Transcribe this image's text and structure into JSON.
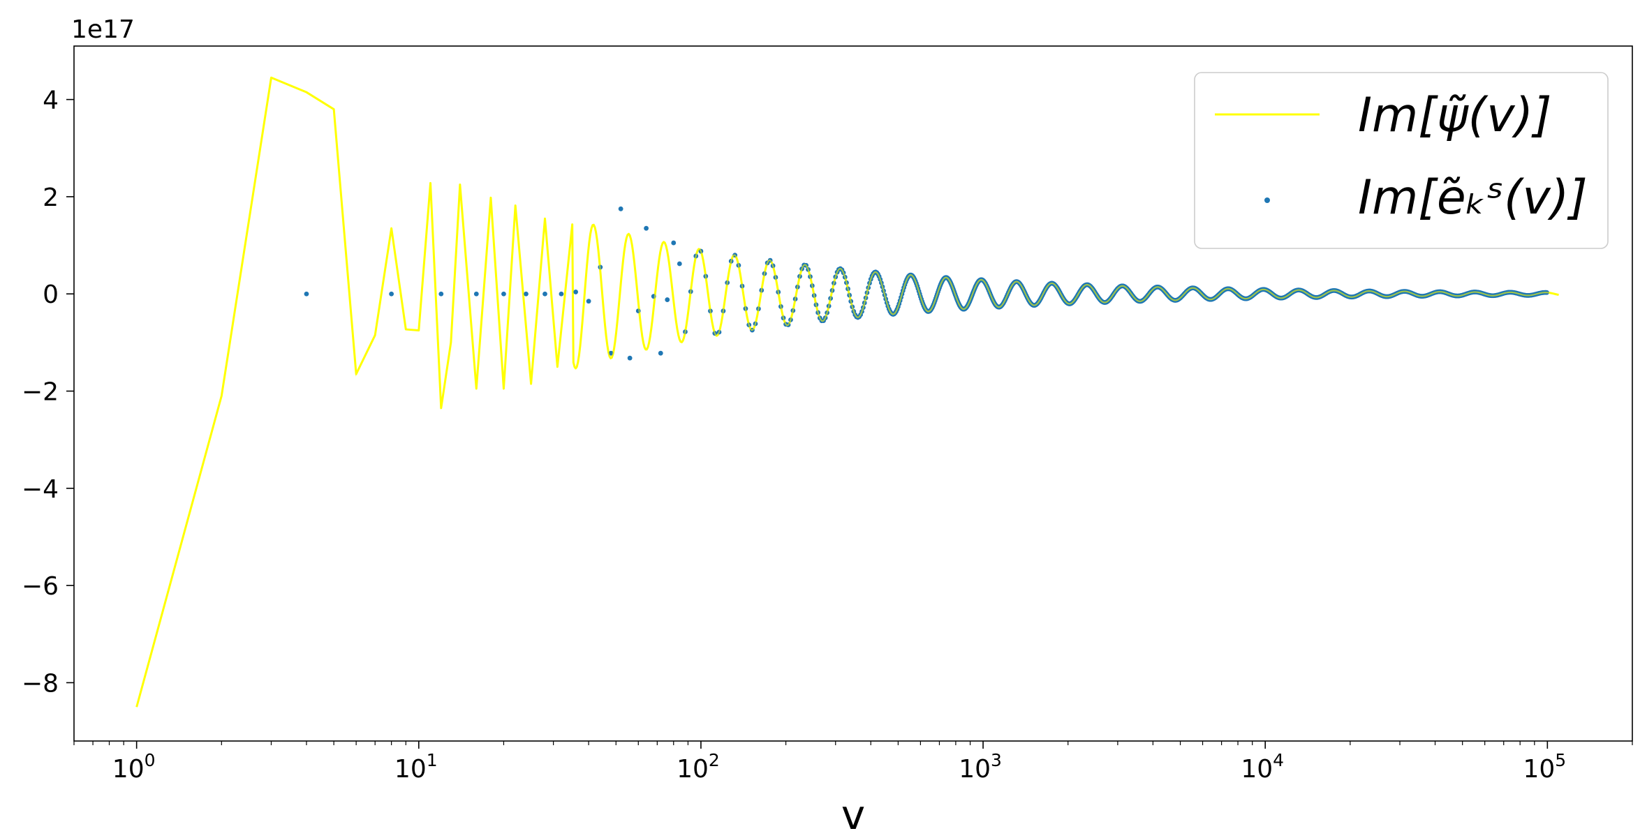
{
  "chart_data": {
    "type": "line",
    "xscale": "log",
    "xlabel": "v",
    "ylabel": "",
    "xlim": [
      0.6,
      200000
    ],
    "ylim": [
      -9.2e+17,
      5.1e+17
    ],
    "y_offset_label": "1e17",
    "grid": false,
    "legend_position": "top-right",
    "x_ticks": [
      {
        "value": 1,
        "base": "10",
        "exp": "0"
      },
      {
        "value": 10,
        "base": "10",
        "exp": "1"
      },
      {
        "value": 100,
        "base": "10",
        "exp": "2"
      },
      {
        "value": 1000,
        "base": "10",
        "exp": "3"
      },
      {
        "value": 10000,
        "base": "10",
        "exp": "4"
      },
      {
        "value": 100000,
        "base": "10",
        "exp": "5"
      }
    ],
    "y_ticks": [
      {
        "value": 4e+17,
        "label": "4"
      },
      {
        "value": 2e+17,
        "label": "2"
      },
      {
        "value": 0,
        "label": "0"
      },
      {
        "value": -2e+17,
        "label": "−2"
      },
      {
        "value": -4e+17,
        "label": "−4"
      },
      {
        "value": -6e+17,
        "label": "−6"
      },
      {
        "value": -8e+17,
        "label": "−8"
      }
    ],
    "series": [
      {
        "name": "Im[ψ̃(v)]",
        "kind": "line",
        "color": "#ffff00",
        "x": [
          1,
          2,
          3,
          4,
          5,
          6,
          7,
          8,
          9,
          10,
          11,
          12,
          13,
          14,
          16,
          18,
          20,
          22,
          25,
          28,
          31,
          35
        ],
        "y": [
          -8.5e+17,
          -2.1e+17,
          4.45e+17,
          4.15e+17,
          3.8e+17,
          -1.65e+17,
          -8.5e+16,
          1.35e+17,
          -7.3e+16,
          -7.5e+16,
          2.28e+17,
          -2.35e+17,
          -1e+17,
          2.25e+17,
          -1.95e+17,
          1.98e+17,
          -1.95e+17,
          1.82e+17,
          -1.85e+17,
          1.55e+17,
          -1.5e+17,
          1.43e+17
        ],
        "envelope_amplitude": 1.3e+17,
        "envelope_decay_exponent": 0.5,
        "envelope_ref_x": 50,
        "log_period": 0.125,
        "phase": 0.3,
        "x_end": 110000
      },
      {
        "name": "Im[ẽₖˢ(v)]",
        "kind": "scatter",
        "color": "#1f77b4",
        "x": [
          4,
          8,
          12,
          16,
          20,
          24,
          28,
          32,
          36,
          40,
          44,
          48,
          52,
          56,
          60,
          64,
          68,
          72,
          76,
          80,
          84
        ],
        "y": [
          0,
          0,
          0,
          0,
          0,
          0,
          0,
          0,
          4000000000000000.0,
          -1.5e+16,
          5.5e+16,
          -1.22e+17,
          1.75e+17,
          -1.32e+17,
          -3.5e+16,
          1.35e+17,
          -5000000000000000.0,
          -1.22e+17,
          -1.2e+16,
          1.05e+17,
          6.2e+16
        ]
      }
    ]
  }
}
